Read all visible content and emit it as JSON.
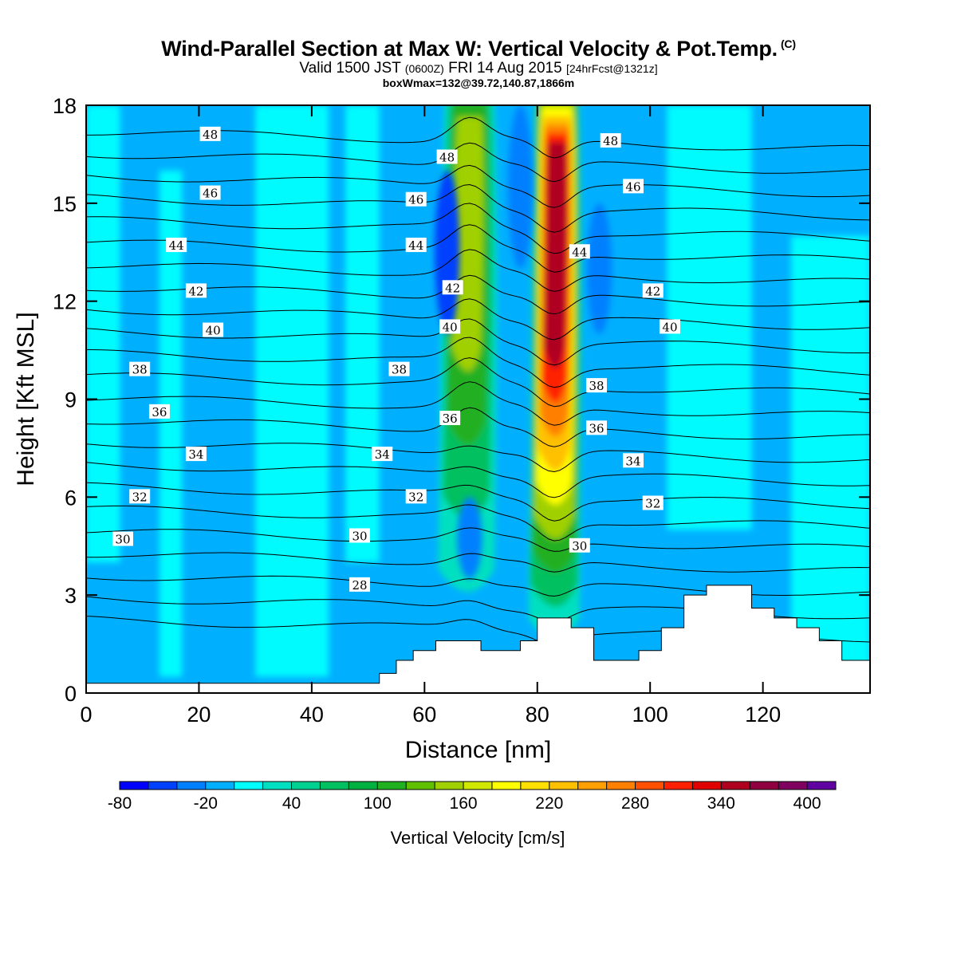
{
  "header": {
    "title": "Wind-Parallel Section at Max W: Vertical Velocity & Pot.Temp.",
    "title_mark": "(C)",
    "valid_prefix": "Valid 1500 JST",
    "valid_utc": "(0600Z)",
    "valid_date": "FRI 14 Aug 2015",
    "valid_fcst": "[24hrFcst@1321z]",
    "box_info": "boxWmax=132@39.72,140.87,1866m"
  },
  "colors": {
    "background_field": "#00d8ff",
    "terrain": "#ffffff",
    "contour_line": "#000000"
  },
  "chart_data": {
    "type": "heatmap",
    "xlabel": "Distance [nm]",
    "ylabel": "Height [Kft MSL]",
    "xlim": [
      0,
      139
    ],
    "ylim": [
      0,
      18
    ],
    "x_ticks": [
      0,
      20,
      40,
      60,
      80,
      100,
      120
    ],
    "y_ticks": [
      0,
      3,
      6,
      9,
      12,
      15,
      18
    ],
    "grid": false,
    "fill_variable": "Vertical Velocity",
    "colorbar": {
      "title": "Vertical Velocity [cm/s]",
      "placement": "bottom",
      "min": -80,
      "max": 420,
      "step": 20,
      "tick_labels": [
        -80,
        -20,
        40,
        100,
        160,
        220,
        280,
        340,
        400
      ],
      "colors": [
        "#0000ff",
        "#0040ff",
        "#0080ff",
        "#00b0ff",
        "#00ffff",
        "#00e0c0",
        "#00d090",
        "#00c060",
        "#00b040",
        "#20b020",
        "#60c000",
        "#a0d000",
        "#d0e800",
        "#ffff00",
        "#ffe000",
        "#ffc000",
        "#ffa000",
        "#ff8000",
        "#ff5000",
        "#ff2000",
        "#e00000",
        "#b00020",
        "#900040",
        "#800060",
        "#6000a0"
      ]
    },
    "vertical_velocity_features": [
      {
        "name": "background",
        "value": -10
      },
      {
        "name": "updraft-west",
        "x_range": [
          63,
          73
        ],
        "y_range": [
          3,
          18
        ],
        "peak_value": 160,
        "peak_height": 15
      },
      {
        "name": "updraft-east",
        "x_range": [
          79,
          88
        ],
        "y_range": [
          1.5,
          18
        ],
        "peak_value": 340,
        "peak_height": 14
      },
      {
        "name": "downdraft-west-top",
        "x_center": 64,
        "y_range": [
          11,
          16
        ],
        "value": -60
      },
      {
        "name": "downdraft-mid",
        "x_center": 77,
        "y_range": [
          13,
          18
        ],
        "value": -40
      },
      {
        "name": "downdraft-low",
        "x_center": 68,
        "y_range": [
          3.5,
          6
        ],
        "value": -40
      },
      {
        "name": "downdraft-east",
        "x_center": 91,
        "y_range": [
          11,
          15
        ],
        "value": -40
      }
    ],
    "theta_contours": {
      "variable": "Pot.Temp.",
      "levels": [
        27,
        28,
        29,
        30,
        31,
        32,
        33,
        34,
        35,
        36,
        37,
        38,
        39,
        40,
        41,
        42,
        43,
        44,
        45,
        46,
        47,
        48,
        49
      ],
      "labels": [
        {
          "value": "48",
          "x": 22,
          "y": 17.1
        },
        {
          "value": "46",
          "x": 22,
          "y": 15.3
        },
        {
          "value": "44",
          "x": 16,
          "y": 13.7
        },
        {
          "value": "42",
          "x": 19.5,
          "y": 12.3
        },
        {
          "value": "40",
          "x": 22.5,
          "y": 11.1
        },
        {
          "value": "38",
          "x": 9.5,
          "y": 9.9
        },
        {
          "value": "36",
          "x": 13,
          "y": 8.6
        },
        {
          "value": "34",
          "x": 19.5,
          "y": 7.3
        },
        {
          "value": "32",
          "x": 9.5,
          "y": 6.0
        },
        {
          "value": "30",
          "x": 6.5,
          "y": 4.7
        },
        {
          "value": "46",
          "x": 58.5,
          "y": 15.1
        },
        {
          "value": "44",
          "x": 58.5,
          "y": 13.7
        },
        {
          "value": "38",
          "x": 55.5,
          "y": 9.9
        },
        {
          "value": "34",
          "x": 52.5,
          "y": 7.3
        },
        {
          "value": "32",
          "x": 58.5,
          "y": 6.0
        },
        {
          "value": "30",
          "x": 48.5,
          "y": 4.8
        },
        {
          "value": "28",
          "x": 48.5,
          "y": 3.3
        },
        {
          "value": "48",
          "x": 64,
          "y": 16.4
        },
        {
          "value": "42",
          "x": 65,
          "y": 12.4
        },
        {
          "value": "40",
          "x": 64.5,
          "y": 11.2
        },
        {
          "value": "36",
          "x": 64.5,
          "y": 8.4
        },
        {
          "value": "44",
          "x": 87.5,
          "y": 13.5
        },
        {
          "value": "38",
          "x": 90.5,
          "y": 9.4
        },
        {
          "value": "36",
          "x": 90.5,
          "y": 8.1
        },
        {
          "value": "34",
          "x": 97,
          "y": 7.1
        },
        {
          "value": "32",
          "x": 100.5,
          "y": 5.8
        },
        {
          "value": "30",
          "x": 87.5,
          "y": 4.5
        },
        {
          "value": "48",
          "x": 93,
          "y": 16.9
        },
        {
          "value": "46",
          "x": 97,
          "y": 15.5
        },
        {
          "value": "42",
          "x": 100.5,
          "y": 12.3
        },
        {
          "value": "40",
          "x": 103.5,
          "y": 11.2
        }
      ]
    },
    "terrain_profile": {
      "x": [
        0,
        12,
        20,
        30,
        40,
        46,
        50,
        52,
        55,
        58,
        62,
        66,
        70,
        74,
        77,
        80,
        83,
        86,
        90,
        94,
        98,
        102,
        106,
        110,
        114,
        118,
        122,
        126,
        130,
        134,
        139
      ],
      "height": [
        0.3,
        0.3,
        0.3,
        0.3,
        0.3,
        0.3,
        0.3,
        0.6,
        1.0,
        1.3,
        1.6,
        1.6,
        1.3,
        1.3,
        1.6,
        2.3,
        2.3,
        2.0,
        1.0,
        1.0,
        1.3,
        2.0,
        3.0,
        3.3,
        3.3,
        2.6,
        2.3,
        2.0,
        1.6,
        1.0,
        0.6
      ]
    }
  }
}
